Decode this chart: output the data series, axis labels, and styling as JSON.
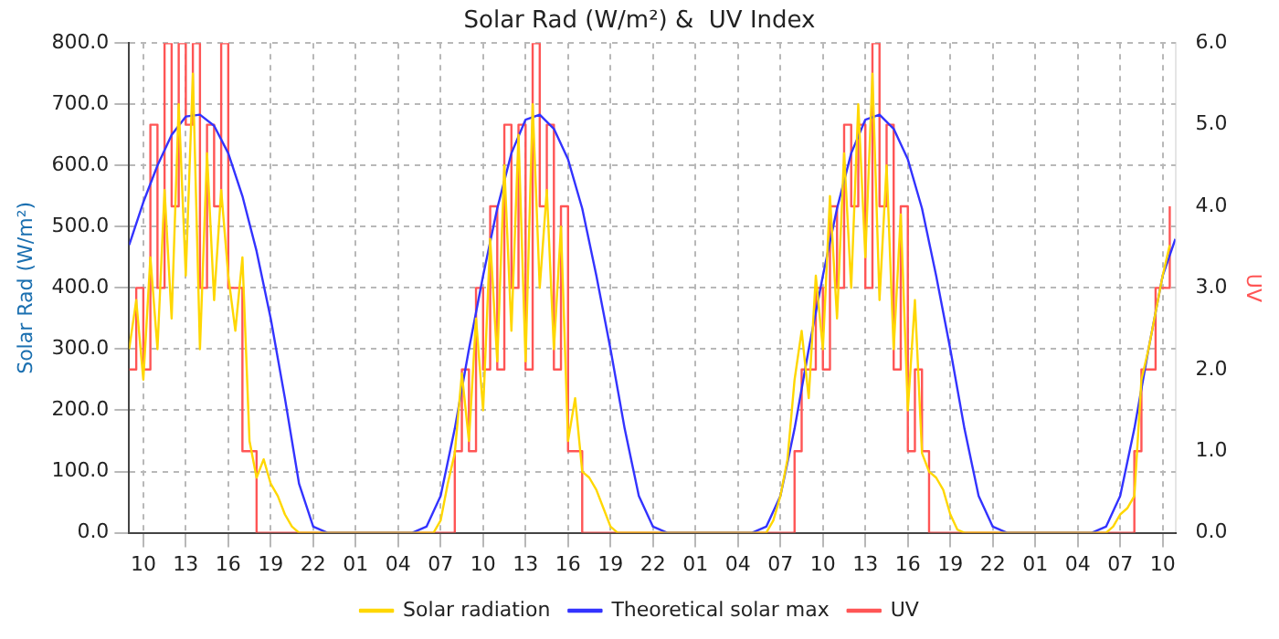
{
  "chart_data": {
    "type": "line",
    "title": "Solar Rad (W/m²) &  UV Index",
    "ylabel": "Solar Rad (W/m²)",
    "y2label": "UV",
    "marker": "none",
    "grid": true,
    "legend": "bottom",
    "xlim": [
      "--01-01T09:00",
      "--01-04T10:54"
    ],
    "xticks": [
      {
        "value": "--01-01T10:00",
        "label": "10"
      },
      {
        "value": "--01-01T13:00",
        "label": "13"
      },
      {
        "value": "--01-01T16:00",
        "label": "16"
      },
      {
        "value": "--01-01T19:00",
        "label": "19"
      },
      {
        "value": "--01-01T22:00",
        "label": "22"
      },
      {
        "value": "--01-02T01:00",
        "label": "01"
      },
      {
        "value": "--01-02T04:00",
        "label": "04"
      },
      {
        "value": "--01-02T07:00",
        "label": "07"
      },
      {
        "value": "--01-02T10:00",
        "label": "10"
      },
      {
        "value": "--01-02T13:00",
        "label": "13"
      },
      {
        "value": "--01-02T16:00",
        "label": "16"
      },
      {
        "value": "--01-02T19:00",
        "label": "19"
      },
      {
        "value": "--01-02T22:00",
        "label": "22"
      },
      {
        "value": "--01-03T01:00",
        "label": "01"
      },
      {
        "value": "--01-03T04:00",
        "label": "04"
      },
      {
        "value": "--01-03T07:00",
        "label": "07"
      },
      {
        "value": "--01-03T10:00",
        "label": "10"
      },
      {
        "value": "--01-03T13:00",
        "label": "13"
      },
      {
        "value": "--01-03T16:00",
        "label": "16"
      },
      {
        "value": "--01-03T19:00",
        "label": "19"
      },
      {
        "value": "--01-03T22:00",
        "label": "22"
      },
      {
        "value": "--01-04T01:00",
        "label": "01"
      },
      {
        "value": "--01-04T04:00",
        "label": "04"
      },
      {
        "value": "--01-04T07:00",
        "label": "07"
      },
      {
        "value": "--01-04T10:00",
        "label": "10"
      }
    ],
    "ylim": [
      0,
      800
    ],
    "yticks": [
      {
        "value": 0,
        "label": "0.0"
      },
      {
        "value": 100,
        "label": "100.0"
      },
      {
        "value": 200,
        "label": "200.0"
      },
      {
        "value": 300,
        "label": "300.0"
      },
      {
        "value": 400,
        "label": "400.0"
      },
      {
        "value": 500,
        "label": "500.0"
      },
      {
        "value": 600,
        "label": "600.0"
      },
      {
        "value": 700,
        "label": "700.0"
      },
      {
        "value": 800,
        "label": "800.0"
      }
    ],
    "y2lim": [
      0,
      6
    ],
    "y2ticks": [
      {
        "value": 0,
        "label": "0.0"
      },
      {
        "value": 1,
        "label": "1.0"
      },
      {
        "value": 2,
        "label": "2.0"
      },
      {
        "value": 3,
        "label": "3.0"
      },
      {
        "value": 4,
        "label": "4.0"
      },
      {
        "value": 5,
        "label": "5.0"
      },
      {
        "value": 6,
        "label": "6.0"
      }
    ],
    "series": [
      {
        "name": "Solar radiation",
        "color": "#ffd700",
        "x": [
          "--01-01T09:00",
          "--01-01T09:30",
          "--01-01T10:00",
          "--01-01T10:30",
          "--01-01T11:00",
          "--01-01T11:30",
          "--01-01T12:00",
          "--01-01T12:30",
          "--01-01T13:00",
          "--01-01T13:30",
          "--01-01T14:00",
          "--01-01T14:30",
          "--01-01T15:00",
          "--01-01T15:30",
          "--01-01T16:00",
          "--01-01T16:30",
          "--01-01T17:00",
          "--01-01T17:30",
          "--01-01T18:00",
          "--01-01T18:30",
          "--01-01T19:00",
          "--01-01T19:30",
          "--01-01T20:00",
          "--01-01T20:30",
          "--01-01T21:00",
          "--01-02T06:30",
          "--01-02T07:00",
          "--01-02T07:30",
          "--01-02T08:00",
          "--01-02T08:30",
          "--01-02T09:00",
          "--01-02T09:30",
          "--01-02T10:00",
          "--01-02T10:30",
          "--01-02T11:00",
          "--01-02T11:30",
          "--01-02T12:00",
          "--01-02T12:30",
          "--01-02T13:00",
          "--01-02T13:30",
          "--01-02T14:00",
          "--01-02T14:30",
          "--01-02T15:00",
          "--01-02T15:30",
          "--01-02T16:00",
          "--01-02T16:30",
          "--01-02T17:00",
          "--01-02T17:30",
          "--01-02T18:00",
          "--01-02T18:30",
          "--01-02T19:00",
          "--01-02T19:30",
          "--01-03T06:00",
          "--01-03T06:30",
          "--01-03T07:00",
          "--01-03T07:30",
          "--01-03T08:00",
          "--01-03T08:30",
          "--01-03T09:00",
          "--01-03T09:30",
          "--01-03T10:00",
          "--01-03T10:30",
          "--01-03T11:00",
          "--01-03T11:30",
          "--01-03T12:00",
          "--01-03T12:30",
          "--01-03T13:00",
          "--01-03T13:30",
          "--01-03T14:00",
          "--01-03T14:30",
          "--01-03T15:00",
          "--01-03T15:30",
          "--01-03T16:00",
          "--01-03T16:30",
          "--01-03T17:00",
          "--01-03T17:30",
          "--01-03T18:00",
          "--01-03T18:30",
          "--01-03T19:00",
          "--01-03T19:30",
          "--01-03T20:00",
          "--01-04T06:00",
          "--01-04T06:30",
          "--01-04T07:00",
          "--01-04T07:30",
          "--01-04T08:00",
          "--01-04T08:30",
          "--01-04T09:00",
          "--01-04T09:30",
          "--01-04T10:00",
          "--01-04T10:30"
        ],
        "values": [
          300,
          380,
          250,
          450,
          300,
          560,
          350,
          700,
          420,
          750,
          300,
          620,
          380,
          560,
          420,
          330,
          450,
          150,
          90,
          120,
          80,
          60,
          30,
          10,
          0,
          0,
          20,
          80,
          130,
          260,
          150,
          350,
          200,
          480,
          280,
          600,
          330,
          650,
          280,
          700,
          400,
          560,
          300,
          500,
          150,
          220,
          100,
          90,
          70,
          40,
          10,
          0,
          0,
          20,
          60,
          120,
          250,
          330,
          220,
          420,
          300,
          550,
          350,
          620,
          400,
          700,
          450,
          750,
          380,
          600,
          300,
          520,
          200,
          380,
          130,
          100,
          90,
          70,
          30,
          5,
          0,
          0,
          10,
          30,
          40,
          60,
          250,
          300,
          360,
          420,
          470
        ]
      },
      {
        "name": "Theoretical solar max",
        "color": "#3333ff",
        "x": [
          "--01-01T09:00",
          "--01-01T10:00",
          "--01-01T11:00",
          "--01-01T12:00",
          "--01-01T13:00",
          "--01-01T14:00",
          "--01-01T15:00",
          "--01-01T16:00",
          "--01-01T17:00",
          "--01-01T18:00",
          "--01-01T19:00",
          "--01-01T20:00",
          "--01-01T21:00",
          "--01-01T22:00",
          "--01-01T23:00",
          "--01-02T05:00",
          "--01-02T06:00",
          "--01-02T07:00",
          "--01-02T08:00",
          "--01-02T09:00",
          "--01-02T10:00",
          "--01-02T11:00",
          "--01-02T12:00",
          "--01-02T13:00",
          "--01-02T14:00",
          "--01-02T15:00",
          "--01-02T16:00",
          "--01-02T17:00",
          "--01-02T18:00",
          "--01-02T19:00",
          "--01-02T20:00",
          "--01-02T21:00",
          "--01-02T22:00",
          "--01-02T23:00",
          "--01-03T05:00",
          "--01-03T06:00",
          "--01-03T07:00",
          "--01-03T08:00",
          "--01-03T09:00",
          "--01-03T10:00",
          "--01-03T11:00",
          "--01-03T12:00",
          "--01-03T13:00",
          "--01-03T14:00",
          "--01-03T15:00",
          "--01-03T16:00",
          "--01-03T17:00",
          "--01-03T18:00",
          "--01-03T19:00",
          "--01-03T20:00",
          "--01-03T21:00",
          "--01-03T22:00",
          "--01-03T23:00",
          "--01-04T05:00",
          "--01-04T06:00",
          "--01-04T07:00",
          "--01-04T08:00",
          "--01-04T09:00",
          "--01-04T10:00",
          "--01-04T10:54"
        ],
        "values": [
          470,
          540,
          600,
          650,
          680,
          683,
          665,
          620,
          550,
          460,
          350,
          220,
          80,
          10,
          0,
          0,
          10,
          60,
          170,
          300,
          420,
          530,
          620,
          675,
          683,
          660,
          610,
          530,
          420,
          300,
          170,
          60,
          10,
          0,
          0,
          10,
          60,
          170,
          300,
          420,
          530,
          620,
          675,
          683,
          660,
          610,
          530,
          420,
          300,
          170,
          60,
          10,
          0,
          0,
          10,
          60,
          170,
          300,
          420,
          480
        ]
      },
      {
        "name": "UV",
        "color": "#ff5555",
        "type": "step",
        "axis": "y2",
        "x": [
          "--01-01T09:00",
          "--01-01T09:30",
          "--01-01T10:00",
          "--01-01T10:30",
          "--01-01T11:00",
          "--01-01T11:30",
          "--01-01T12:00",
          "--01-01T12:30",
          "--01-01T13:00",
          "--01-01T13:30",
          "--01-01T14:00",
          "--01-01T14:30",
          "--01-01T15:00",
          "--01-01T15:30",
          "--01-01T16:00",
          "--01-01T16:30",
          "--01-01T17:00",
          "--01-01T17:30",
          "--01-01T18:00",
          "--01-02T08:00",
          "--01-02T08:30",
          "--01-02T09:00",
          "--01-02T09:30",
          "--01-02T10:00",
          "--01-02T10:30",
          "--01-02T11:00",
          "--01-02T11:30",
          "--01-02T12:00",
          "--01-02T12:30",
          "--01-02T13:00",
          "--01-02T13:30",
          "--01-02T14:00",
          "--01-02T14:30",
          "--01-02T15:00",
          "--01-02T15:30",
          "--01-02T16:00",
          "--01-02T16:30",
          "--01-02T17:00",
          "--01-03T08:00",
          "--01-03T08:30",
          "--01-03T09:00",
          "--01-03T09:30",
          "--01-03T10:00",
          "--01-03T10:30",
          "--01-03T11:00",
          "--01-03T11:30",
          "--01-03T12:00",
          "--01-03T12:30",
          "--01-03T13:00",
          "--01-03T13:30",
          "--01-03T14:00",
          "--01-03T14:30",
          "--01-03T15:00",
          "--01-03T15:30",
          "--01-03T16:00",
          "--01-03T16:30",
          "--01-03T17:00",
          "--01-03T17:30",
          "--01-04T08:00",
          "--01-04T08:30",
          "--01-04T09:00",
          "--01-04T09:30",
          "--01-04T10:00",
          "--01-04T10:30"
        ],
        "values": [
          2,
          3,
          2,
          5,
          3,
          6,
          4,
          6,
          5,
          6,
          3,
          5,
          4,
          6,
          3,
          3,
          1,
          1,
          0,
          1,
          2,
          1,
          3,
          2,
          4,
          2,
          5,
          3,
          5,
          2,
          6,
          4,
          5,
          2,
          4,
          1,
          1,
          0,
          1,
          2,
          2,
          3,
          2,
          4,
          3,
          5,
          4,
          5,
          3,
          6,
          4,
          5,
          2,
          4,
          1,
          2,
          1,
          0,
          1,
          2,
          2,
          3,
          3,
          4
        ]
      }
    ]
  }
}
